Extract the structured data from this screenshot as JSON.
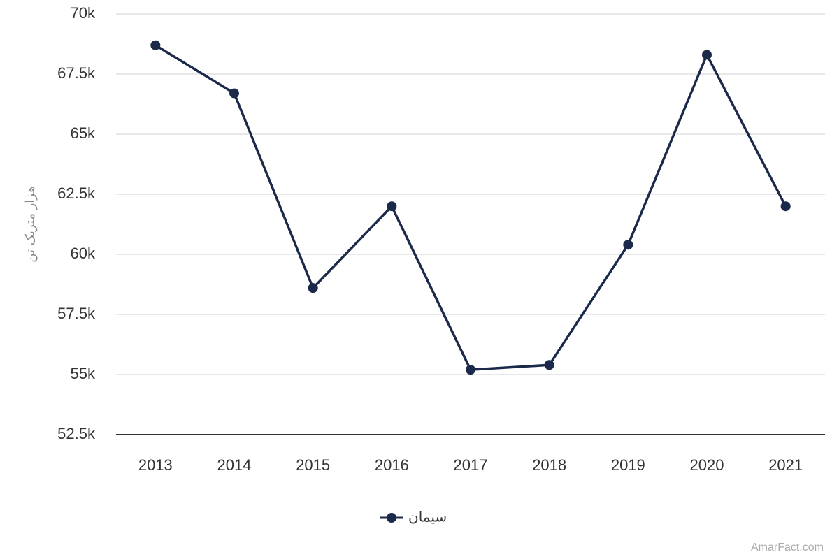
{
  "chart_data": {
    "type": "line",
    "y_label": "هزار متریک تن",
    "categories": [
      "2013",
      "2014",
      "2015",
      "2016",
      "2017",
      "2018",
      "2019",
      "2020",
      "2021"
    ],
    "series": [
      {
        "name": "سیمان",
        "color": "#1b2a4a",
        "values": [
          68700,
          66700,
          58600,
          62000,
          55200,
          55400,
          60400,
          68300,
          62000
        ]
      }
    ],
    "ylim": [
      52500,
      70000
    ],
    "yticks": [
      {
        "value": 52500,
        "label": "52.5k"
      },
      {
        "value": 55000,
        "label": "55k"
      },
      {
        "value": 57500,
        "label": "57.5k"
      },
      {
        "value": 60000,
        "label": "60k"
      },
      {
        "value": 62500,
        "label": "62.5k"
      },
      {
        "value": 65000,
        "label": "65k"
      },
      {
        "value": 67500,
        "label": "67.5k"
      },
      {
        "value": 70000,
        "label": "70k"
      }
    ],
    "grid": true,
    "legend": "bottom",
    "watermark": "AmarFact.com"
  }
}
